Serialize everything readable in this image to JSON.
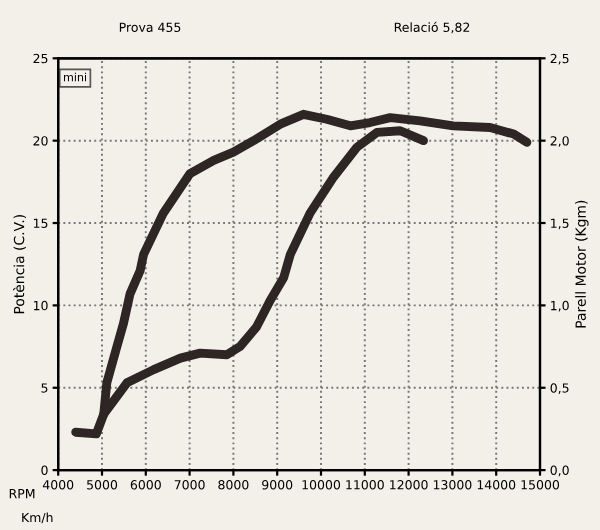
{
  "chart_data": {
    "type": "line",
    "title": "Prova 455",
    "subtitle": "Relació 5,82",
    "xlabel": "RPM",
    "ylabel": "Potència (C.V.)",
    "y2label": "Parell Motor (Kgm)",
    "annotations": [
      "Km/h",
      "mini"
    ],
    "series": [
      {
        "color": "#2e2624",
        "x": [
          4400,
          4870,
          5040,
          5110,
          5340,
          5490,
          5640,
          5870,
          5950,
          6400,
          7010,
          7550,
          8000,
          8460,
          9070,
          9600,
          10130,
          10670,
          11120,
          11580,
          12260,
          13020,
          13860,
          14400,
          14700
        ],
        "values": [
          2.3,
          2.2,
          3.4,
          5.3,
          7.5,
          8.9,
          10.7,
          12.1,
          13.1,
          15.6,
          18.0,
          18.8,
          19.3,
          20.0,
          21.0,
          21.6,
          21.3,
          20.9,
          21.1,
          21.4,
          21.2,
          20.9,
          20.8,
          20.4,
          19.9
        ]
      },
      {
        "color": "#2e2624",
        "x": [
          5040,
          5570,
          6180,
          6790,
          7240,
          7850,
          8150,
          8530,
          8840,
          9150,
          9300,
          9750,
          10290,
          10820,
          11280,
          11810,
          12340
        ],
        "values": [
          3.4,
          5.3,
          6.1,
          6.8,
          7.1,
          7.0,
          7.5,
          8.7,
          10.3,
          11.7,
          13.1,
          15.6,
          17.8,
          19.6,
          20.5,
          20.6,
          20.0
        ]
      }
    ],
    "xlim": [
      4000,
      15000
    ],
    "xticks": [
      4000,
      5000,
      6000,
      7000,
      8000,
      9000,
      10000,
      11000,
      12000,
      13000,
      14000,
      15000
    ],
    "ylim": [
      0,
      25
    ],
    "yticks": [
      0,
      5,
      10,
      15,
      20,
      25
    ],
    "y2lim": [
      0,
      2.5
    ],
    "y2ticks": [
      {
        "value": 0,
        "label": "0,0"
      },
      {
        "value": 0.5,
        "label": "0,5"
      },
      {
        "value": 1,
        "label": "1,0"
      },
      {
        "value": 1.5,
        "label": "1,5"
      },
      {
        "value": 2,
        "label": "2,0"
      },
      {
        "value": 2.5,
        "label": "2,5"
      }
    ],
    "grid": true,
    "line_style": "solid",
    "marker": "none"
  }
}
